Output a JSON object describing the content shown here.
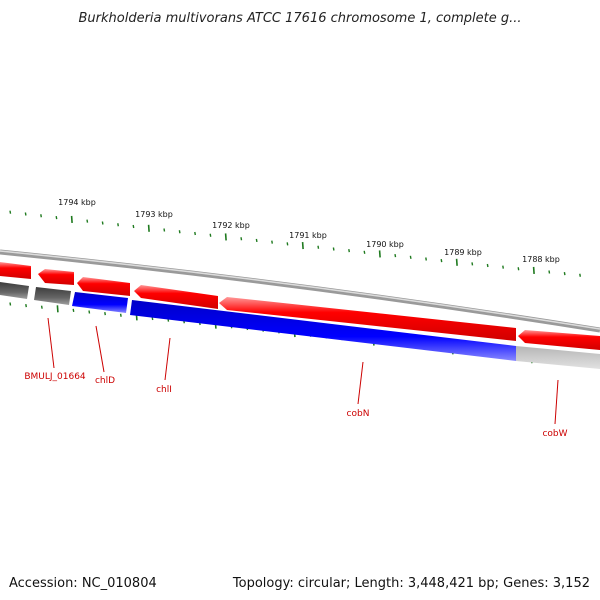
{
  "title": "Burkholderia multivorans ATCC 17616 chromosome 1, complete g...",
  "footer": {
    "accession": "Accession: NC_010804",
    "summary": "Topology: circular; Length: 3,448,421 bp; Genes: 3,152"
  },
  "ticks": [
    "1794 kbp",
    "1793 kbp",
    "1792 kbp",
    "1791 kbp",
    "1790 kbp",
    "1789 kbp",
    "1788 kbp"
  ],
  "genes": [
    "BMULJ_01664",
    "chlD",
    "chlI",
    "cobN",
    "cobW"
  ],
  "colors": {
    "forward": "#ff0000",
    "reverse": "#0000ff",
    "grey_dark": "#555555",
    "grey_light": "#c8c8c8",
    "tick": "#1f7a1f",
    "label": "#cc0000"
  }
}
